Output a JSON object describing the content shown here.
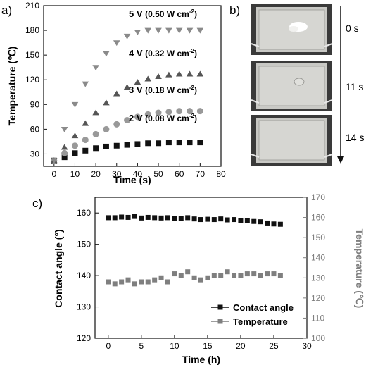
{
  "panels": {
    "a_label": "a)",
    "b_label": "b)",
    "c_label": "c)"
  },
  "photo_panel": {
    "time_labels": [
      "0 s",
      "11 s",
      "14 s"
    ]
  },
  "colors": {
    "black": "#111111",
    "gray": "#7f7f7f",
    "photo_bg": "#c9c9c5",
    "photo_frame": "#3a3a3a"
  },
  "chart_data": [
    {
      "type": "scatter",
      "panel": "a",
      "xlabel": "Time (s)",
      "ylabel": "Temperature (℃)",
      "xlim": [
        -5,
        80
      ],
      "ylim": [
        15,
        210
      ],
      "xticks": [
        0,
        10,
        20,
        30,
        40,
        50,
        60,
        70,
        80
      ],
      "yticks": [
        30,
        60,
        90,
        120,
        150,
        180,
        210
      ],
      "x": [
        0,
        5,
        10,
        15,
        20,
        25,
        30,
        35,
        40,
        45,
        50,
        55,
        60,
        65,
        70
      ],
      "series": [
        {
          "label_voltage": "2 V",
          "label_density_prefix": "(0.08 W cm",
          "label_density_exp": "-2",
          "label_density_suffix": ")",
          "marker": "square",
          "color": "#111111",
          "values": [
            22,
            26,
            31,
            34,
            37,
            39,
            40,
            41,
            42,
            43,
            43,
            44,
            44,
            44,
            44
          ]
        },
        {
          "label_voltage": "3 V",
          "label_density_prefix": "(0.18 W cm",
          "label_density_exp": "-2",
          "label_density_suffix": ")",
          "marker": "circle",
          "color": "#999999",
          "values": [
            22,
            31,
            40,
            47,
            54,
            60,
            66,
            71,
            75,
            78,
            80,
            81,
            82,
            82,
            82
          ]
        },
        {
          "label_voltage": "4 V",
          "label_density_prefix": "(0.32 W cm",
          "label_density_exp": "-2",
          "label_density_suffix": ")",
          "marker": "triangle-up",
          "color": "#555555",
          "values": [
            22,
            38,
            52,
            67,
            80,
            92,
            103,
            111,
            117,
            121,
            124,
            126,
            127,
            127,
            127
          ]
        },
        {
          "label_voltage": "5 V",
          "label_density_prefix": "(0.50 W cm",
          "label_density_exp": "-2",
          "label_density_suffix": ")",
          "marker": "triangle-down",
          "color": "#8a8a8a",
          "values": [
            22,
            60,
            90,
            115,
            135,
            152,
            165,
            173,
            178,
            180,
            180,
            180,
            180,
            180,
            180
          ]
        }
      ]
    },
    {
      "type": "scatter",
      "panel": "c",
      "xlabel": "Time (h)",
      "ylabel_left": "Contact angle (°)",
      "ylabel_right": "Temperature (℃)",
      "xlim": [
        -2,
        30
      ],
      "ylim_left": [
        120,
        165
      ],
      "ylim_right": [
        100,
        170
      ],
      "xticks": [
        0,
        5,
        10,
        15,
        20,
        25,
        30
      ],
      "yticks_left": [
        120,
        130,
        140,
        150,
        160
      ],
      "yticks_right": [
        100,
        110,
        120,
        130,
        140,
        150,
        160,
        170
      ],
      "legend": [
        "Contact angle",
        "Temperature"
      ],
      "legend_position": "lower-right",
      "x": [
        0,
        1,
        2,
        3,
        4,
        5,
        6,
        7,
        8,
        9,
        10,
        11,
        12,
        13,
        14,
        15,
        16,
        17,
        18,
        19,
        20,
        21,
        22,
        23,
        24,
        25,
        26
      ],
      "series": [
        {
          "name": "Contact angle",
          "axis": "left",
          "marker": "square",
          "color": "#111111",
          "values": [
            158.5,
            158.5,
            158.7,
            158.6,
            158.9,
            158.4,
            158.6,
            158.5,
            158.4,
            158.5,
            158.3,
            158.2,
            158.5,
            158.1,
            157.9,
            158.0,
            157.9,
            158.1,
            157.8,
            157.9,
            157.5,
            157.6,
            157.3,
            157.2,
            156.8,
            156.5,
            156.4
          ]
        },
        {
          "name": "Temperature",
          "axis": "right",
          "marker": "square",
          "color": "#7f7f7f",
          "values": [
            128,
            127,
            128,
            129,
            127,
            128,
            128,
            129,
            130,
            128,
            132,
            131,
            133,
            130,
            129,
            130,
            131,
            131,
            133,
            131,
            131,
            132,
            132,
            131,
            132,
            132,
            131
          ]
        }
      ]
    }
  ]
}
